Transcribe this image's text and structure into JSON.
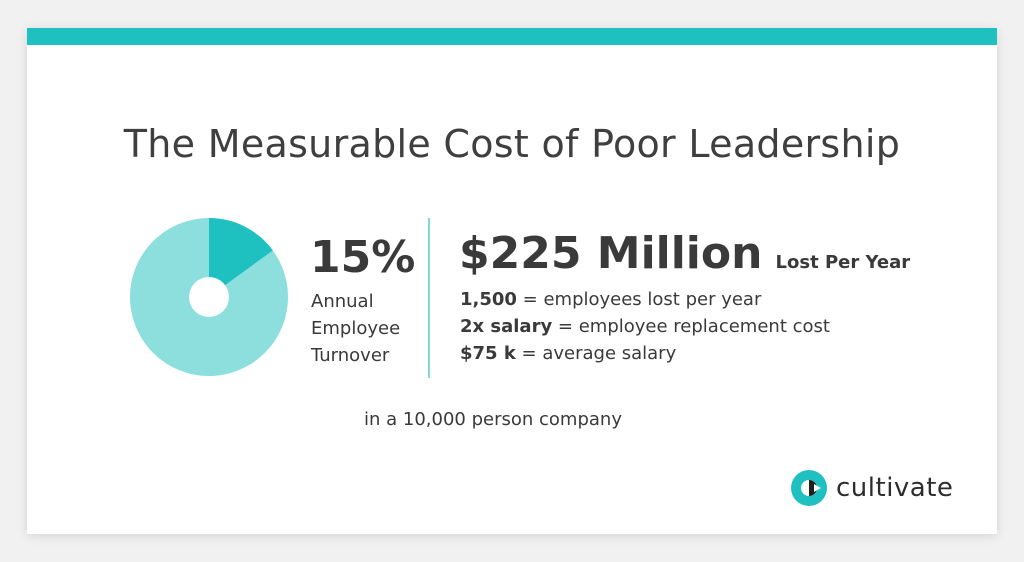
{
  "title": "The Measurable Cost of Poor Leadership",
  "colors": {
    "accent": "#1fc0c0",
    "pie_main": "#8ddfde",
    "pie_highlight": "#1fc0c0",
    "text": "#3a3a3a"
  },
  "chart_data": {
    "type": "pie",
    "values": [
      15,
      85
    ],
    "labels": [
      "",
      ""
    ],
    "title": ""
  },
  "stat": {
    "value": "15%",
    "label_lines": [
      "Annual",
      "Employee",
      "Turnover"
    ]
  },
  "cost": {
    "amount": "$225 Million",
    "suffix": "Lost Per Year",
    "facts": [
      {
        "bold": "1,500",
        "rest": " = employees lost per year"
      },
      {
        "bold": "2x salary",
        "rest": " = employee replacement cost"
      },
      {
        "bold": "$75 k",
        "rest": " = average salary"
      }
    ]
  },
  "footnote": "in a 10,000 person company",
  "logo": {
    "text": "cultivate",
    "icon": "cultivate-logo-icon"
  }
}
